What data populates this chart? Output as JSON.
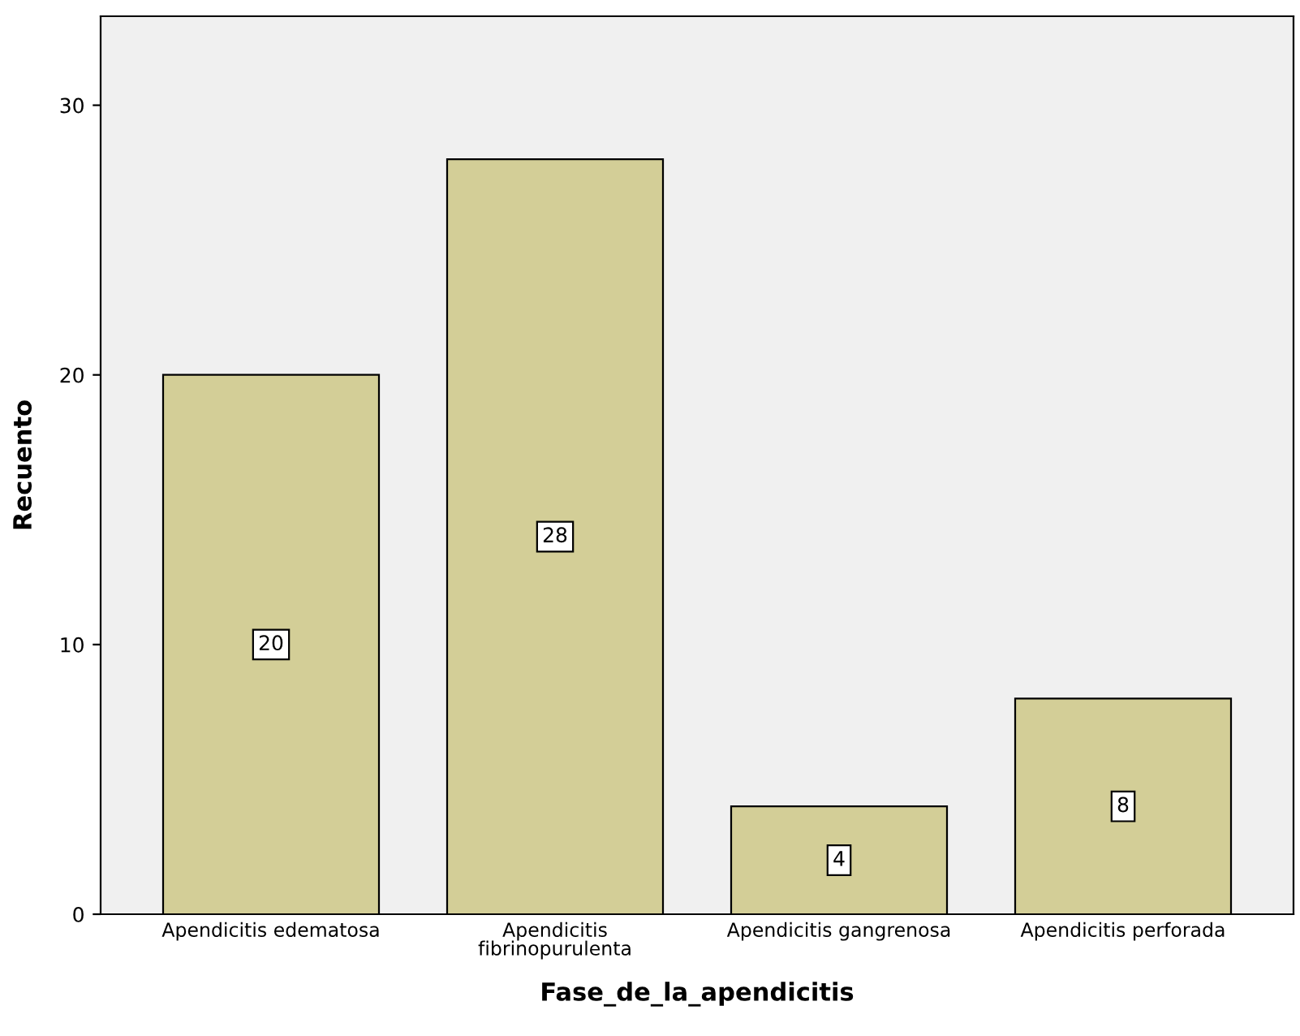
{
  "chart_data": {
    "type": "bar",
    "xlabel": "Fase_de_la_apendicitis",
    "ylabel": "Recuento",
    "categories": [
      "Apendicitis edematosa",
      "Apendicitis\nfibrinopurulenta",
      "Apendicitis gangrenosa",
      "Apendicitis perforada"
    ],
    "values": [
      20,
      28,
      4,
      8
    ],
    "color": "#d3ce97",
    "ylim": [
      0,
      33.3
    ],
    "yticks": [
      0,
      10,
      20,
      30
    ],
    "grid": false,
    "data_labels": true
  }
}
